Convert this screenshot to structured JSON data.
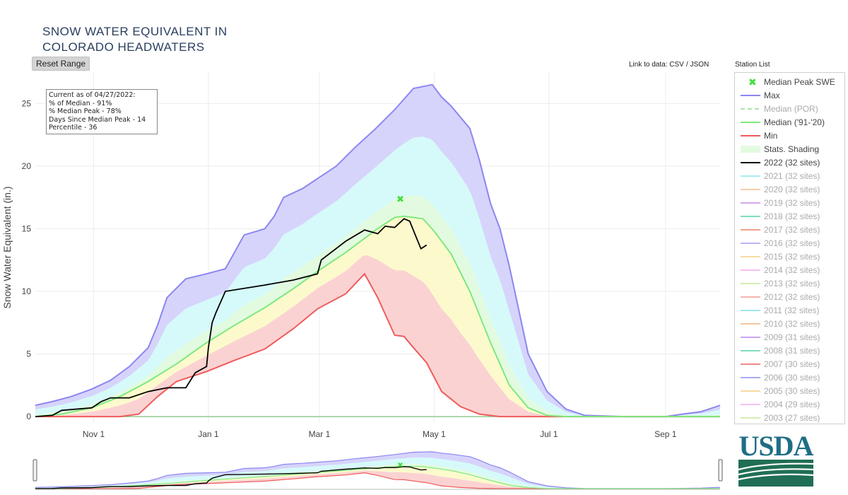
{
  "title": "SNOW WATER EQUIVALENT IN\nCOLORADO HEADWATERS",
  "reset_label": "Reset Range",
  "links": {
    "prefix": "Link to data: ",
    "csv": "CSV",
    "json": "JSON"
  },
  "station_list_label": "Station List",
  "info_box": {
    "lines": [
      "Current as of 04/27/2022:",
      "% of Median - 91%",
      "% Median Peak - 78%",
      "Days Since Median Peak - 14",
      "Percentile - 36"
    ]
  },
  "logo_text": "USDA",
  "colors": {
    "max": "#8c86f0",
    "min": "#ef5b5b",
    "median": "#7fe87f",
    "current": "#000000",
    "peak_marker": "#3ee03e",
    "band_max": "#d6d4fb",
    "band_upper": "#d6fafa",
    "band_mid": "#e2fbe0",
    "band_lower": "#fcfacd",
    "band_min": "#fbd2d2"
  },
  "legend": [
    {
      "name": "Median Peak SWE",
      "kind": "marker",
      "color": "#3ee03e",
      "muted": false
    },
    {
      "name": "Max",
      "kind": "line",
      "color": "#8c86f0",
      "muted": false
    },
    {
      "name": "Median (POR)",
      "kind": "dash",
      "color": "#a8e6a8",
      "muted": true
    },
    {
      "name": "Median ('91-'20)",
      "kind": "line",
      "color": "#7fe87f",
      "muted": false
    },
    {
      "name": "Min",
      "kind": "line",
      "color": "#ef5b5b",
      "muted": false
    },
    {
      "name": "Stats. Shading",
      "kind": "box",
      "color": "#e2fbe0",
      "muted": false
    },
    {
      "name": "2022 (32 sites)",
      "kind": "line",
      "color": "#000000",
      "muted": false
    },
    {
      "name": "2021 (32 sites)",
      "kind": "line",
      "color": "#a8eef0",
      "muted": true
    },
    {
      "name": "2020 (32 sites)",
      "kind": "line",
      "color": "#f7cfa7",
      "muted": true
    },
    {
      "name": "2019 (32 sites)",
      "kind": "line",
      "color": "#d7a8f0",
      "muted": true
    },
    {
      "name": "2018 (32 sites)",
      "kind": "line",
      "color": "#7fdcc0",
      "muted": true
    },
    {
      "name": "2017 (32 sites)",
      "kind": "line",
      "color": "#f2a08a",
      "muted": true
    },
    {
      "name": "2016 (32 sites)",
      "kind": "line",
      "color": "#b9b6f2",
      "muted": true
    },
    {
      "name": "2015 (32 sites)",
      "kind": "line",
      "color": "#f7dca0",
      "muted": true
    },
    {
      "name": "2014 (32 sites)",
      "kind": "line",
      "color": "#f4bff4",
      "muted": true
    },
    {
      "name": "2013 (32 sites)",
      "kind": "line",
      "color": "#d6eeb0",
      "muted": true
    },
    {
      "name": "2012 (32 sites)",
      "kind": "line",
      "color": "#f5b5b0",
      "muted": true
    },
    {
      "name": "2011 (32 sites)",
      "kind": "line",
      "color": "#9fe6f2",
      "muted": true
    },
    {
      "name": "2010 (32 sites)",
      "kind": "line",
      "color": "#f5c8a0",
      "muted": true
    },
    {
      "name": "2009 (31 sites)",
      "kind": "line",
      "color": "#c7a6f0",
      "muted": true
    },
    {
      "name": "2008 (31 sites)",
      "kind": "line",
      "color": "#7fdcc0",
      "muted": true
    },
    {
      "name": "2007 (30 sites)",
      "kind": "line",
      "color": "#f28a8a",
      "muted": true
    },
    {
      "name": "2006 (30 sites)",
      "kind": "line",
      "color": "#a9aaf0",
      "muted": true
    },
    {
      "name": "2005 (30 sites)",
      "kind": "line",
      "color": "#f7d9a0",
      "muted": true
    },
    {
      "name": "2004 (29 sites)",
      "kind": "line",
      "color": "#f4c0f4",
      "muted": true
    },
    {
      "name": "2003 (27 sites)",
      "kind": "line",
      "color": "#d6eeb0",
      "muted": true
    }
  ],
  "chart_data": {
    "type": "area",
    "ylabel": "Snow Water Equivalent (in.)",
    "xlim": [
      "2021-10-01",
      "2022-09-30"
    ],
    "ylim": [
      -0.5,
      27.5
    ],
    "x_ticks": [
      {
        "date": "2021-11-01",
        "label": "Nov 1"
      },
      {
        "date": "2022-01-01",
        "label": "Jan 1"
      },
      {
        "date": "2022-03-01",
        "label": "Mar 1"
      },
      {
        "date": "2022-05-01",
        "label": "May 1"
      },
      {
        "date": "2022-07-01",
        "label": "Jul 1"
      },
      {
        "date": "2022-09-01",
        "label": "Sep 1"
      }
    ],
    "y_ticks": [
      0,
      5,
      10,
      15,
      20,
      25
    ],
    "grid": true,
    "legend_position": "right",
    "median_peak": {
      "date": "2022-04-13",
      "value": 17.4
    },
    "series": [
      {
        "name": "Max",
        "points": [
          [
            "2021-10-01",
            0.9
          ],
          [
            "2021-10-10",
            1.2
          ],
          [
            "2021-10-20",
            1.6
          ],
          [
            "2021-10-31",
            2.2
          ],
          [
            "2021-11-10",
            2.9
          ],
          [
            "2021-11-20",
            4.0
          ],
          [
            "2021-11-30",
            5.5
          ],
          [
            "2021-12-05",
            7.3
          ],
          [
            "2021-12-10",
            9.5
          ],
          [
            "2021-12-20",
            11.0
          ],
          [
            "2021-12-31",
            11.4
          ],
          [
            "2022-01-10",
            11.8
          ],
          [
            "2022-01-20",
            14.5
          ],
          [
            "2022-01-31",
            15.0
          ],
          [
            "2022-02-05",
            16.0
          ],
          [
            "2022-02-10",
            17.5
          ],
          [
            "2022-02-20",
            18.2
          ],
          [
            "2022-02-28",
            19.0
          ],
          [
            "2022-03-10",
            20.0
          ],
          [
            "2022-03-20",
            21.5
          ],
          [
            "2022-03-31",
            23.0
          ],
          [
            "2022-04-10",
            24.5
          ],
          [
            "2022-04-20",
            26.2
          ],
          [
            "2022-04-30",
            26.5
          ],
          [
            "2022-05-05",
            25.5
          ],
          [
            "2022-05-10",
            24.8
          ],
          [
            "2022-05-20",
            23.0
          ],
          [
            "2022-05-25",
            20.5
          ],
          [
            "2022-05-31",
            17.0
          ],
          [
            "2022-06-05",
            15.0
          ],
          [
            "2022-06-10",
            12.0
          ],
          [
            "2022-06-20",
            5.0
          ],
          [
            "2022-06-30",
            2.0
          ],
          [
            "2022-07-10",
            0.6
          ],
          [
            "2022-07-20",
            0.1
          ],
          [
            "2022-08-10",
            0.0
          ],
          [
            "2022-09-01",
            0.0
          ],
          [
            "2022-09-10",
            0.2
          ],
          [
            "2022-09-20",
            0.4
          ],
          [
            "2022-09-30",
            0.9
          ]
        ]
      },
      {
        "name": "Median ('91-'20)",
        "points": [
          [
            "2021-10-01",
            0.0
          ],
          [
            "2021-10-15",
            0.2
          ],
          [
            "2021-10-31",
            0.7
          ],
          [
            "2021-11-15",
            1.6
          ],
          [
            "2021-11-30",
            2.8
          ],
          [
            "2021-12-15",
            4.2
          ],
          [
            "2021-12-31",
            5.9
          ],
          [
            "2022-01-15",
            7.3
          ],
          [
            "2022-01-31",
            8.7
          ],
          [
            "2022-02-15",
            10.2
          ],
          [
            "2022-02-28",
            11.6
          ],
          [
            "2022-03-15",
            13.1
          ],
          [
            "2022-03-31",
            14.9
          ],
          [
            "2022-04-10",
            15.9
          ],
          [
            "2022-04-15",
            16.0
          ],
          [
            "2022-04-25",
            15.8
          ],
          [
            "2022-05-01",
            14.8
          ],
          [
            "2022-05-10",
            13.0
          ],
          [
            "2022-05-20",
            10.0
          ],
          [
            "2022-05-31",
            5.9
          ],
          [
            "2022-06-10",
            2.5
          ],
          [
            "2022-06-20",
            0.7
          ],
          [
            "2022-06-30",
            0.1
          ],
          [
            "2022-07-10",
            0.0
          ],
          [
            "2022-09-30",
            0.0
          ]
        ]
      },
      {
        "name": "Min",
        "points": [
          [
            "2021-10-01",
            0.0
          ],
          [
            "2021-11-15",
            0.0
          ],
          [
            "2021-11-25",
            0.2
          ],
          [
            "2021-12-05",
            1.6
          ],
          [
            "2021-12-15",
            2.8
          ],
          [
            "2021-12-31",
            3.6
          ],
          [
            "2022-01-15",
            4.5
          ],
          [
            "2022-01-31",
            5.4
          ],
          [
            "2022-02-15",
            7.0
          ],
          [
            "2022-02-28",
            8.6
          ],
          [
            "2022-03-15",
            9.8
          ],
          [
            "2022-03-25",
            11.4
          ],
          [
            "2022-04-01",
            9.5
          ],
          [
            "2022-04-10",
            6.5
          ],
          [
            "2022-04-15",
            6.4
          ],
          [
            "2022-04-20",
            5.5
          ],
          [
            "2022-04-27",
            4.3
          ],
          [
            "2022-05-05",
            2.0
          ],
          [
            "2022-05-15",
            0.8
          ],
          [
            "2022-05-25",
            0.2
          ],
          [
            "2022-06-05",
            0.0
          ],
          [
            "2022-09-30",
            0.0
          ]
        ]
      },
      {
        "name": "2022 (32 sites)",
        "points": [
          [
            "2021-10-01",
            0.0
          ],
          [
            "2021-10-10",
            0.1
          ],
          [
            "2021-10-15",
            0.5
          ],
          [
            "2021-10-31",
            0.7
          ],
          [
            "2021-11-05",
            1.2
          ],
          [
            "2021-11-10",
            1.5
          ],
          [
            "2021-11-20",
            1.5
          ],
          [
            "2021-11-30",
            2.0
          ],
          [
            "2021-12-10",
            2.3
          ],
          [
            "2021-12-20",
            2.3
          ],
          [
            "2021-12-25",
            3.5
          ],
          [
            "2021-12-31",
            4.0
          ],
          [
            "2022-01-01",
            5.5
          ],
          [
            "2022-01-03",
            7.5
          ],
          [
            "2022-01-05",
            8.3
          ],
          [
            "2022-01-10",
            10.0
          ],
          [
            "2022-01-31",
            10.5
          ],
          [
            "2022-02-15",
            10.9
          ],
          [
            "2022-02-28",
            11.4
          ],
          [
            "2022-03-02",
            12.5
          ],
          [
            "2022-03-15",
            14.0
          ],
          [
            "2022-03-25",
            14.9
          ],
          [
            "2022-04-01",
            14.6
          ],
          [
            "2022-04-05",
            15.2
          ],
          [
            "2022-04-10",
            15.1
          ],
          [
            "2022-04-15",
            15.8
          ],
          [
            "2022-04-18",
            15.6
          ],
          [
            "2022-04-21",
            14.5
          ],
          [
            "2022-04-24",
            13.4
          ],
          [
            "2022-04-27",
            13.7
          ]
        ]
      }
    ]
  }
}
